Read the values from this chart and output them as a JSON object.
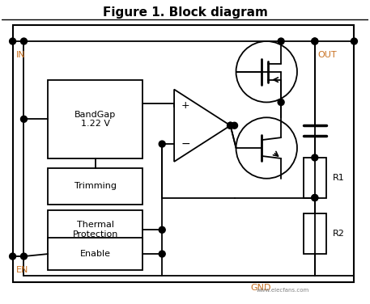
{
  "title": "Figure 1. Block diagram",
  "title_fontsize": 11,
  "title_fontweight": "bold",
  "background_color": "#ffffff",
  "text_color": "#000000",
  "label_color": "#c87020",
  "watermark": "www.elecfans.com",
  "gnd_label": "GND",
  "in_label": "IN",
  "out_label": "OUT",
  "en_label": "EN",
  "figsize": [
    4.57,
    3.76
  ],
  "dpi": 100
}
